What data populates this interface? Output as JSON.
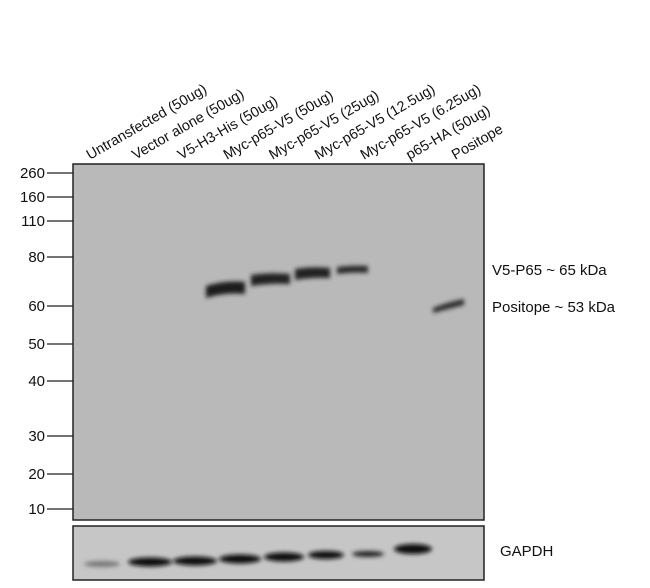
{
  "lanes": [
    "Untransfected (50ug)",
    "Vector alone (50ug)",
    "V5-H3-His (50ug)",
    "Myc-p65-V5 (50ug)",
    "Myc-p65-V5 (25ug)",
    "Myc-p65-V5 (12.5ug)",
    "Myc-p65-V5 (6.25ug)",
    "p65-HA (50ug)",
    "Positope"
  ],
  "markers": [
    "260",
    "160",
    "110",
    "80",
    "60",
    "50",
    "40",
    "30",
    "20",
    "10"
  ],
  "annotations": [
    "V5-P65 ~ 65 kDa",
    "Positope ~ 53 kDa"
  ],
  "loading_control": "GAPDH"
}
